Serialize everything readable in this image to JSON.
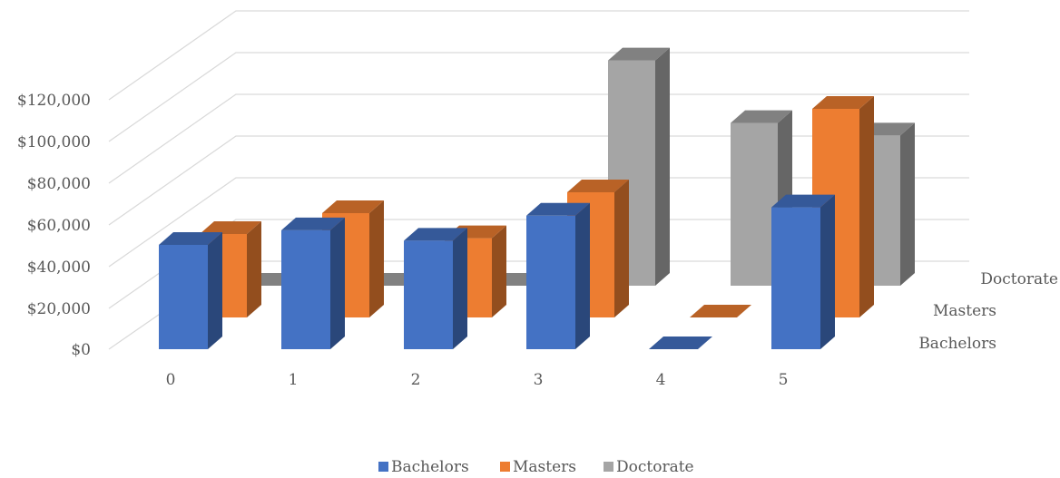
{
  "chart_data": {
    "type": "bar",
    "variant": "3d-column",
    "categories": [
      "0",
      "1",
      "2",
      "3",
      "4",
      "5"
    ],
    "series": [
      {
        "name": "Bachelors",
        "values": [
          50000,
          57000,
          52000,
          64000,
          0,
          68000
        ]
      },
      {
        "name": "Masters",
        "values": [
          40000,
          50000,
          38000,
          60000,
          0,
          100000
        ]
      },
      {
        "name": "Doctorate",
        "values": [
          0,
          0,
          0,
          108000,
          78000,
          72000
        ]
      }
    ],
    "y_ticks": [
      "$0",
      "$20,000",
      "$40,000",
      "$60,000",
      "$80,000",
      "$100,000",
      "$120,000"
    ],
    "ylim": [
      0,
      140000
    ],
    "grid": true,
    "legend": "bottom",
    "colors": {
      "Bachelors": "#4472c4",
      "Masters": "#ed7d31",
      "Doctorate": "#a5a5a5"
    }
  }
}
